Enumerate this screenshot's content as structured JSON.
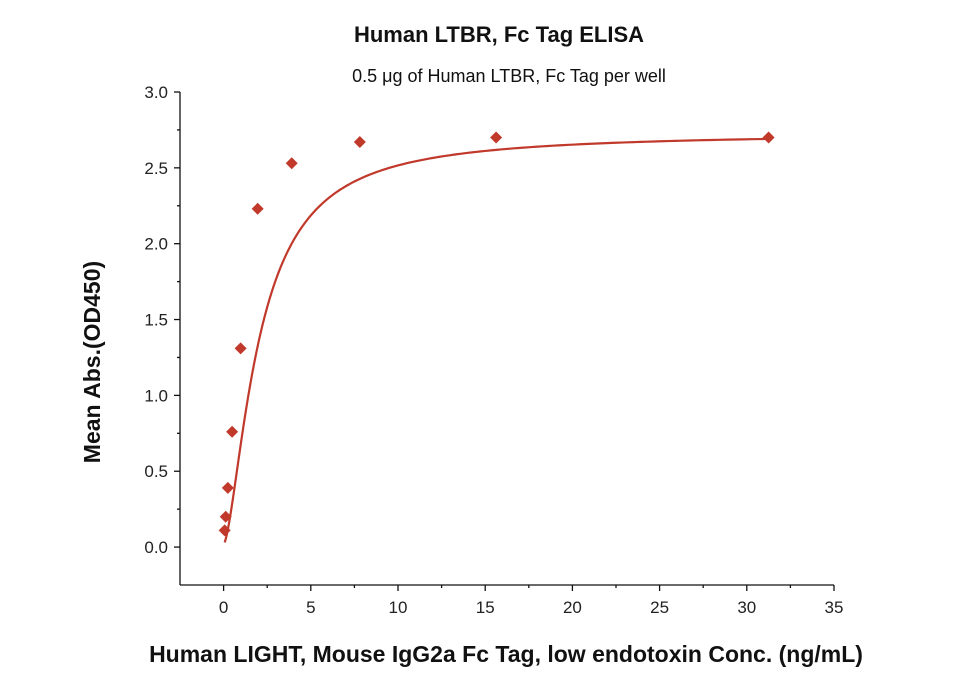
{
  "chart_data": {
    "type": "scatter",
    "title": "Human LTBR, Fc Tag ELISA",
    "subtitle": "0.5 μg of Human LTBR, Fc Tag per well",
    "xlabel": "Human LIGHT, Mouse IgG2a Fc Tag, low endotoxin Conc. (ng/mL)",
    "ylabel": "Mean Abs.(OD450)",
    "xlim": [
      -2.5,
      35
    ],
    "ylim": [
      -0.25,
      3.0
    ],
    "x_ticks": [
      0,
      5,
      10,
      15,
      20,
      25,
      30,
      35
    ],
    "x_tick_labels": [
      "0",
      "5",
      "10",
      "15",
      "20",
      "25",
      "30",
      "35"
    ],
    "y_ticks": [
      0.0,
      0.5,
      1.0,
      1.5,
      2.0,
      2.5,
      3.0
    ],
    "y_tick_labels": [
      "0.0",
      "0.5",
      "1.0",
      "1.5",
      "2.0",
      "2.5",
      "3.0"
    ],
    "grid": false,
    "series": [
      {
        "name": "Human LIGHT, Mouse IgG2a Fc Tag",
        "marker": "diamond",
        "color": "#c0392b",
        "x": [
          0.061,
          0.122,
          0.244,
          0.488,
          0.977,
          1.953,
          3.906,
          7.813,
          15.625,
          31.25
        ],
        "y": [
          0.11,
          0.2,
          0.39,
          0.76,
          1.31,
          2.23,
          2.53,
          2.67,
          2.7,
          2.7
        ]
      }
    ],
    "fit_curve": {
      "model": "4PL",
      "color": "#c0392b",
      "bottom": 0.02,
      "top": 2.73,
      "ec50": 2.05,
      "hill": 1.55
    }
  }
}
